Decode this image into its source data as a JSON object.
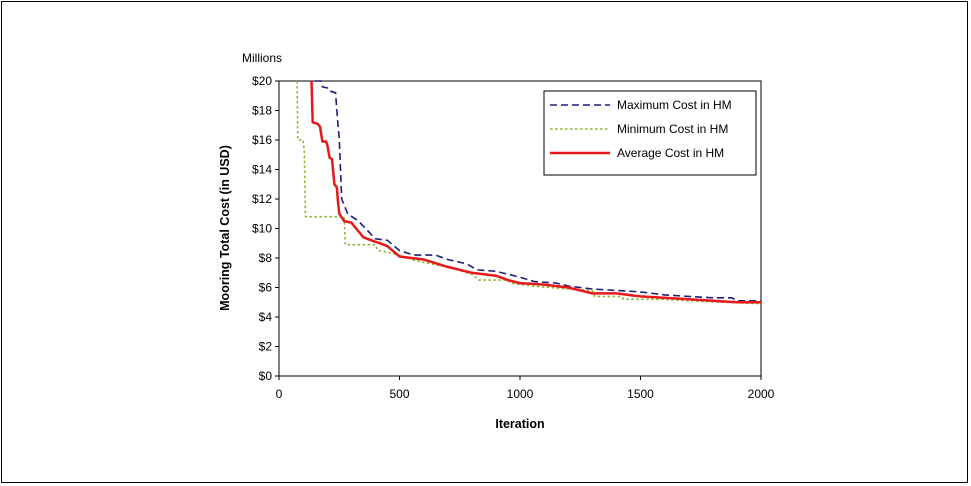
{
  "chart_data": {
    "type": "line",
    "title": "",
    "xlabel": "Iteration",
    "ylabel": "Mooring Total Cost (in USD)",
    "y_unit_label": "Millions",
    "xlim": [
      0,
      2000
    ],
    "ylim": [
      0,
      20
    ],
    "x_ticks": [
      0,
      500,
      1000,
      1500,
      2000
    ],
    "y_ticks": [
      0,
      2,
      4,
      6,
      8,
      10,
      12,
      14,
      16,
      18,
      20
    ],
    "y_tick_labels": [
      "$0",
      "$2",
      "$4",
      "$6",
      "$8",
      "$10",
      "$12",
      "$14",
      "$16",
      "$18",
      "$20"
    ],
    "grid": false,
    "legend_position": "top-right",
    "series": [
      {
        "name": "Maximum Cost in HM",
        "color": "#1f1f7a",
        "style": "dashed",
        "points": [
          [
            150,
            20
          ],
          [
            175,
            20
          ],
          [
            180,
            19.6
          ],
          [
            210,
            19.5
          ],
          [
            215,
            19.3
          ],
          [
            235,
            19.2
          ],
          [
            240,
            18
          ],
          [
            250,
            16
          ],
          [
            260,
            12
          ],
          [
            285,
            11
          ],
          [
            330,
            10.5
          ],
          [
            400,
            9.3
          ],
          [
            450,
            9.2
          ],
          [
            500,
            8.5
          ],
          [
            560,
            8.2
          ],
          [
            650,
            8.2
          ],
          [
            700,
            7.9
          ],
          [
            780,
            7.6
          ],
          [
            820,
            7.2
          ],
          [
            900,
            7.1
          ],
          [
            950,
            6.9
          ],
          [
            1000,
            6.7
          ],
          [
            1060,
            6.4
          ],
          [
            1150,
            6.3
          ],
          [
            1200,
            6.1
          ],
          [
            1300,
            5.9
          ],
          [
            1400,
            5.8
          ],
          [
            1500,
            5.7
          ],
          [
            1600,
            5.5
          ],
          [
            1700,
            5.4
          ],
          [
            1800,
            5.3
          ],
          [
            1880,
            5.3
          ],
          [
            1900,
            5.1
          ],
          [
            2000,
            5.1
          ]
        ]
      },
      {
        "name": "Minimum Cost in HM",
        "color": "#8ab832",
        "style": "dotted",
        "points": [
          [
            75,
            20
          ],
          [
            78,
            16
          ],
          [
            100,
            16
          ],
          [
            105,
            15.2
          ],
          [
            110,
            10.8
          ],
          [
            270,
            10.8
          ],
          [
            275,
            8.9
          ],
          [
            400,
            8.9
          ],
          [
            410,
            8.5
          ],
          [
            450,
            8.4
          ],
          [
            500,
            8.2
          ],
          [
            550,
            7.9
          ],
          [
            600,
            7.7
          ],
          [
            700,
            7.4
          ],
          [
            800,
            6.9
          ],
          [
            830,
            6.5
          ],
          [
            950,
            6.5
          ],
          [
            960,
            6.3
          ],
          [
            1050,
            6.1
          ],
          [
            1200,
            5.9
          ],
          [
            1300,
            5.8
          ],
          [
            1310,
            5.4
          ],
          [
            1420,
            5.4
          ],
          [
            1430,
            5.2
          ],
          [
            1600,
            5.2
          ],
          [
            1700,
            5.1
          ],
          [
            1850,
            5.0
          ],
          [
            2000,
            4.9
          ]
        ]
      },
      {
        "name": "Average Cost in HM",
        "color": "#e8191b",
        "style": "solid",
        "points": [
          [
            135,
            20
          ],
          [
            140,
            17.2
          ],
          [
            160,
            17.1
          ],
          [
            170,
            16.9
          ],
          [
            180,
            15.9
          ],
          [
            195,
            15.9
          ],
          [
            200,
            15.7
          ],
          [
            210,
            14.8
          ],
          [
            220,
            14.7
          ],
          [
            230,
            13
          ],
          [
            240,
            12.8
          ],
          [
            245,
            11.8
          ],
          [
            250,
            11
          ],
          [
            270,
            10.5
          ],
          [
            300,
            10.4
          ],
          [
            320,
            10
          ],
          [
            350,
            9.4
          ],
          [
            400,
            9.1
          ],
          [
            420,
            9.0
          ],
          [
            450,
            8.8
          ],
          [
            500,
            8.1
          ],
          [
            600,
            7.9
          ],
          [
            700,
            7.4
          ],
          [
            800,
            7.0
          ],
          [
            900,
            6.8
          ],
          [
            950,
            6.5
          ],
          [
            1000,
            6.3
          ],
          [
            1100,
            6.2
          ],
          [
            1200,
            6.0
          ],
          [
            1300,
            5.6
          ],
          [
            1400,
            5.6
          ],
          [
            1500,
            5.4
          ],
          [
            1700,
            5.2
          ],
          [
            1800,
            5.1
          ],
          [
            1900,
            5.0
          ],
          [
            2000,
            5.0
          ]
        ]
      }
    ]
  }
}
